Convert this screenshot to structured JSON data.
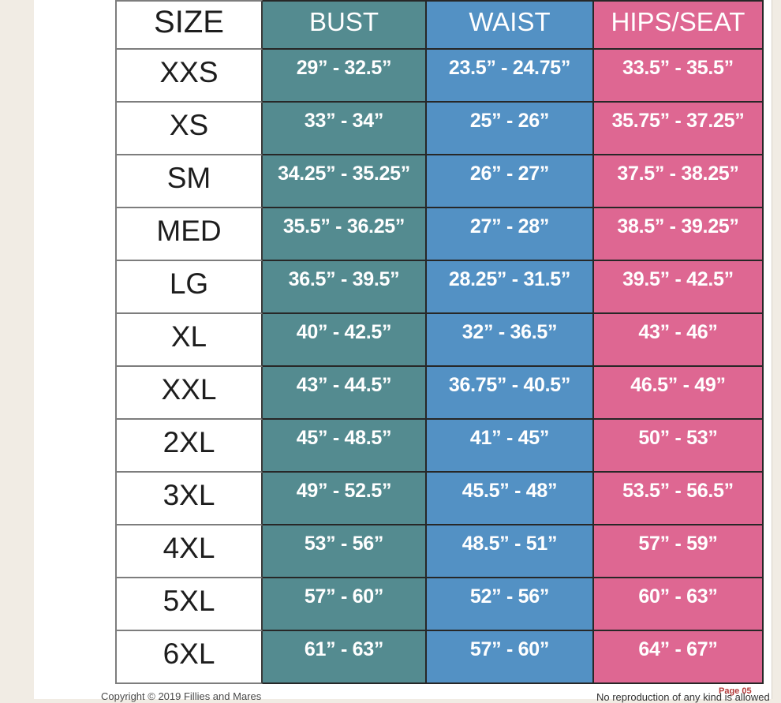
{
  "colors": {
    "page_bg": "#F1ECE4",
    "teal": "#548B90",
    "blue": "#5391C4",
    "pink": "#DE6792",
    "border_dark": "#272727",
    "border_gray": "#7D7D7D",
    "footer_red": "#B53A3A"
  },
  "table": {
    "headers": {
      "size": "SIZE",
      "bust": "BUST",
      "waist": "WAIST",
      "hips": "HIPS/SEAT"
    },
    "rows": [
      {
        "size": "XXS",
        "bust": "29” - 32.5”",
        "waist": "23.5” - 24.75”",
        "hips": "33.5” - 35.5”"
      },
      {
        "size": "XS",
        "bust": "33” - 34”",
        "waist": "25” - 26”",
        "hips": "35.75” - 37.25”"
      },
      {
        "size": "SM",
        "bust": "34.25” - 35.25”",
        "waist": "26” - 27”",
        "hips": "37.5” - 38.25”"
      },
      {
        "size": "MED",
        "bust": "35.5” - 36.25”",
        "waist": "27” - 28”",
        "hips": "38.5” - 39.25”"
      },
      {
        "size": "LG",
        "bust": "36.5” - 39.5”",
        "waist": "28.25” - 31.5”",
        "hips": "39.5” - 42.5”"
      },
      {
        "size": "XL",
        "bust": "40” - 42.5”",
        "waist": "32” - 36.5”",
        "hips": "43” - 46”"
      },
      {
        "size": "XXL",
        "bust": "43” - 44.5”",
        "waist": "36.75” - 40.5”",
        "hips": "46.5” - 49”"
      },
      {
        "size": "2XL",
        "bust": "45” - 48.5”",
        "waist": "41” - 45”",
        "hips": "50” - 53”"
      },
      {
        "size": "3XL",
        "bust": "49” - 52.5”",
        "waist": "45.5” - 48”",
        "hips": "53.5” - 56.5”"
      },
      {
        "size": "4XL",
        "bust": "53” - 56”",
        "waist": "48.5” - 51”",
        "hips": "57” - 59”"
      },
      {
        "size": "5XL",
        "bust": "57” - 60”",
        "waist": "52” - 56”",
        "hips": "60” - 63”"
      },
      {
        "size": "6XL",
        "bust": "61” - 63”",
        "waist": "57” - 60”",
        "hips": "64” - 67”"
      }
    ]
  },
  "footer": {
    "copyright": "Copyright © 2019 Fillies and Mares",
    "notice": "No reproduction of any kind is allowed",
    "page_number": "Page 05"
  }
}
